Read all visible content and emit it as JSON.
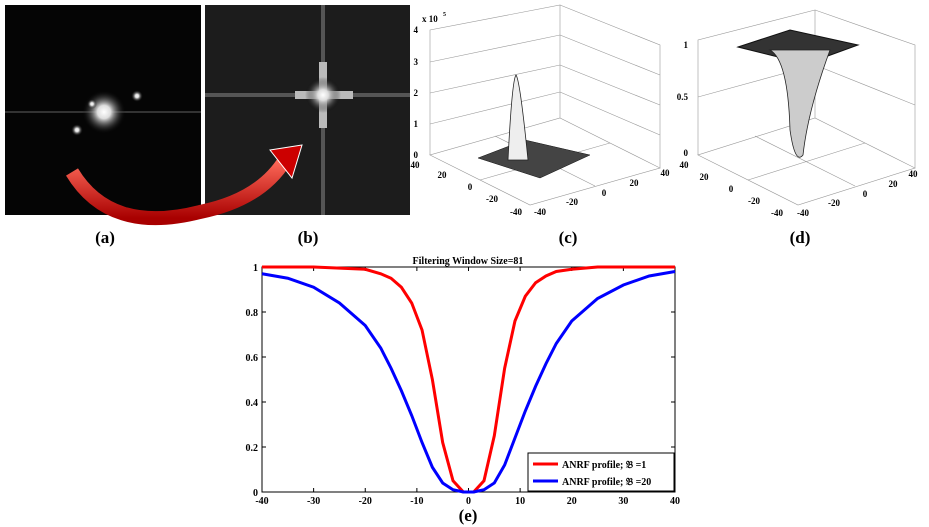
{
  "panels": {
    "a": {
      "label": "(a)"
    },
    "b": {
      "label": "(b)"
    },
    "c": {
      "label": "(c)",
      "z_scale": "x 10",
      "z_scale_exp": "5",
      "z_ticks": [
        "4",
        "3",
        "2",
        "1",
        "0"
      ],
      "left_ticks": [
        "40",
        "20",
        "0",
        "-20",
        "-40"
      ],
      "right_ticks": [
        "-40",
        "-20",
        "0",
        "20",
        "40"
      ]
    },
    "d": {
      "label": "(d)",
      "z_ticks": [
        "1",
        "0.5",
        "0"
      ],
      "left_ticks": [
        "40",
        "20",
        "0",
        "-20",
        "-40"
      ],
      "right_ticks": [
        "-40",
        "-20",
        "0",
        "20",
        "40"
      ]
    }
  },
  "chart_data": {
    "type": "line",
    "title": "Filtering Window Size=81",
    "x_label": "(e)",
    "x": [
      -40,
      -35,
      -30,
      -25,
      -20,
      -17,
      -15,
      -13,
      -11,
      -9,
      -7,
      -5,
      -3,
      -1,
      0,
      1,
      3,
      5,
      7,
      9,
      11,
      13,
      15,
      17,
      20,
      25,
      30,
      35,
      40
    ],
    "series": [
      {
        "name": "ANRF profile; 𝔅 =1",
        "color": "#ff0000",
        "values": [
          1,
          1,
          1,
          0.995,
          0.99,
          0.97,
          0.95,
          0.91,
          0.84,
          0.72,
          0.5,
          0.22,
          0.05,
          0,
          0,
          0,
          0.05,
          0.25,
          0.55,
          0.76,
          0.87,
          0.93,
          0.96,
          0.98,
          0.99,
          1,
          1,
          1,
          1
        ]
      },
      {
        "name": "ANRF profile; 𝔅 =20",
        "color": "#0000ff",
        "values": [
          0.97,
          0.95,
          0.91,
          0.84,
          0.74,
          0.64,
          0.55,
          0.45,
          0.34,
          0.22,
          0.11,
          0.04,
          0.01,
          0,
          0,
          0,
          0.01,
          0.04,
          0.12,
          0.24,
          0.36,
          0.47,
          0.57,
          0.66,
          0.76,
          0.86,
          0.92,
          0.96,
          0.98
        ]
      }
    ],
    "xlim": [
      -40,
      40
    ],
    "ylim": [
      0,
      1
    ],
    "xticks": [
      -40,
      -30,
      -20,
      -10,
      0,
      10,
      20,
      30,
      40
    ],
    "yticks": [
      0,
      0.2,
      0.4,
      0.6,
      0.8,
      1
    ],
    "legend": "lower right"
  }
}
